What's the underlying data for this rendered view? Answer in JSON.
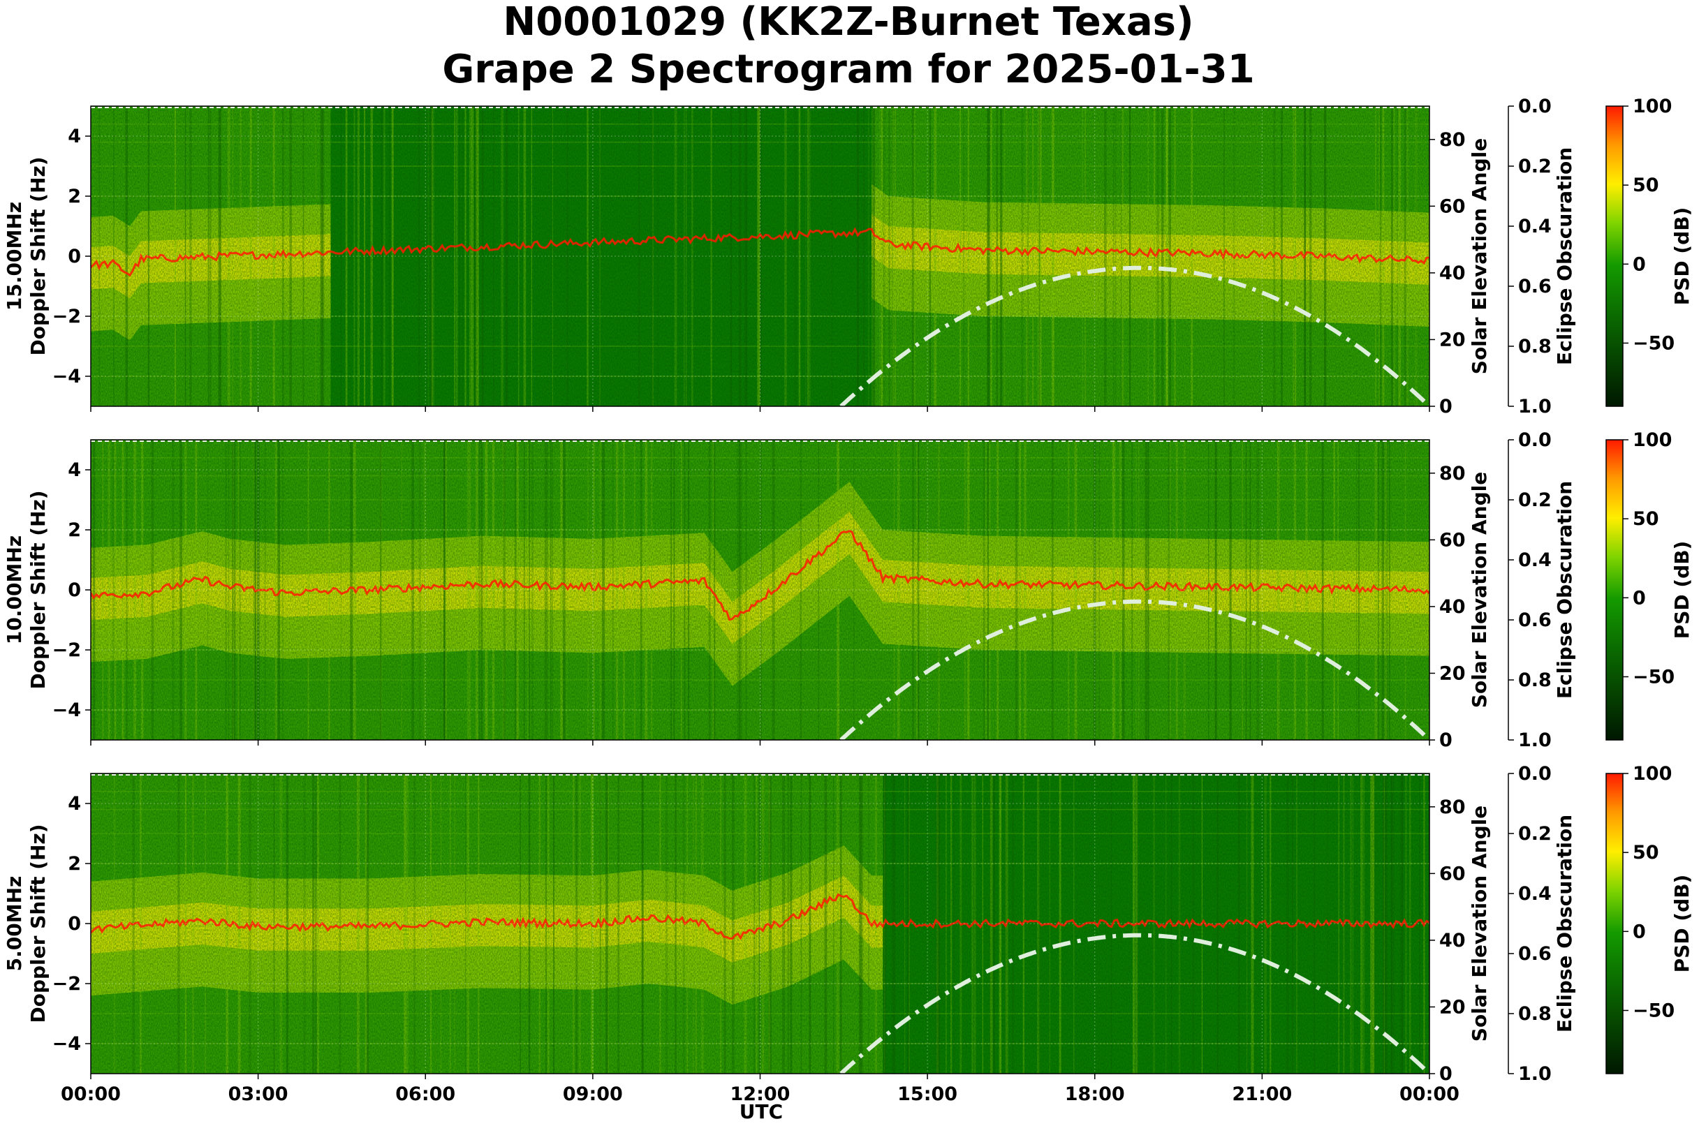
{
  "title_line1": "N0001029 (KK2Z-Burnet Texas)",
  "title_line2": "Grape 2 Spectrogram for 2025-01-31",
  "chart_data": {
    "type": "heatmap",
    "xlabel": "UTC",
    "x_ticks": [
      "00:00",
      "03:00",
      "06:00",
      "09:00",
      "12:00",
      "15:00",
      "18:00",
      "21:00",
      "00:00"
    ],
    "xlim_hours": [
      0,
      24
    ],
    "y_ticks": [
      "4",
      "2",
      "0",
      "−2",
      "−4"
    ],
    "ylim": [
      -5,
      5
    ],
    "right_label": "Solar Elevation Angle",
    "right_ticks": [
      "0",
      "20",
      "40",
      "60",
      "80"
    ],
    "right_lim": [
      0,
      90
    ],
    "eclipse_label": "Eclipse Obscuration",
    "eclipse_ticks": [
      "0.0",
      "0.2",
      "0.4",
      "0.6",
      "0.8",
      "1.0"
    ],
    "colorbar_label": "PSD (dB)",
    "colorbar_ticks": [
      "100",
      "50",
      "0",
      "−50"
    ],
    "colorbar_range": [
      -90,
      100
    ],
    "colors": {
      "red": "#ff1a00",
      "yellow": "#ffee00",
      "green": "#0a7a00",
      "dark": "#001800",
      "solar_curve": "#dfeedd"
    },
    "solar_elevation": {
      "sunrise_hour": 13.45,
      "peak_hour": 18.8,
      "peak_elevation": 41.5,
      "sunset_hour": 24.0
    },
    "panels": [
      {
        "freq_label": "15.00MHz",
        "ylabel": "Doppler Shift (Hz)",
        "carrier": [
          [
            0.0,
            -0.3
          ],
          [
            0.4,
            -0.25
          ],
          [
            0.7,
            -0.6
          ],
          [
            0.9,
            -0.1
          ],
          [
            14.0,
            0.8
          ],
          [
            14.3,
            0.4
          ],
          [
            16,
            0.2
          ],
          [
            18,
            0.15
          ],
          [
            20,
            0.1
          ],
          [
            22,
            0.0
          ],
          [
            24,
            -0.15
          ]
        ],
        "bright_regions": [
          [
            0.0,
            4.3
          ],
          [
            14.0,
            24.0
          ]
        ]
      },
      {
        "freq_label": "10.00MHz",
        "ylabel": "Doppler Shift (Hz)",
        "carrier": [
          [
            0.0,
            -0.2
          ],
          [
            1.0,
            -0.1
          ],
          [
            2.0,
            0.35
          ],
          [
            2.5,
            0.1
          ],
          [
            3.5,
            -0.1
          ],
          [
            5,
            0.0
          ],
          [
            7,
            0.2
          ],
          [
            9,
            0.1
          ],
          [
            11,
            0.3
          ],
          [
            11.5,
            -1.0
          ],
          [
            12.3,
            0.1
          ],
          [
            13.6,
            2.0
          ],
          [
            14.2,
            0.4
          ],
          [
            16,
            0.2
          ],
          [
            20,
            0.1
          ],
          [
            24,
            0.0
          ]
        ],
        "bright_regions": [
          [
            0.0,
            24.0
          ]
        ]
      },
      {
        "freq_label": "5.00MHz",
        "ylabel": "Doppler Shift (Hz)",
        "carrier": [
          [
            0.0,
            -0.2
          ],
          [
            2.0,
            0.1
          ],
          [
            3.0,
            -0.1
          ],
          [
            5,
            -0.1
          ],
          [
            7,
            0.05
          ],
          [
            9,
            0.0
          ],
          [
            10,
            0.2
          ],
          [
            11,
            0.0
          ],
          [
            11.5,
            -0.5
          ],
          [
            12.5,
            0.1
          ],
          [
            13.5,
            1.0
          ],
          [
            14,
            0.0
          ],
          [
            16,
            0.0
          ],
          [
            24,
            0.0
          ]
        ],
        "bright_regions": [
          [
            0.0,
            14.2
          ]
        ]
      }
    ]
  }
}
